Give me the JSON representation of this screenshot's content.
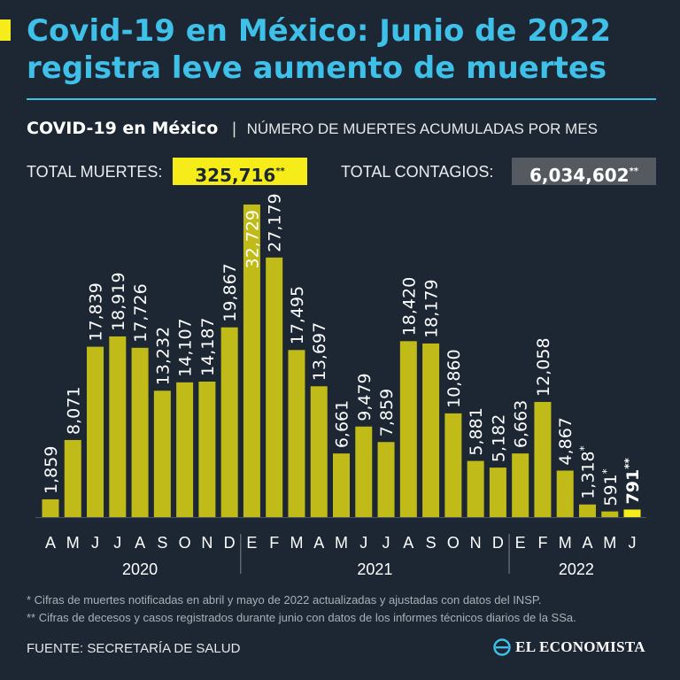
{
  "headline": {
    "line1": "Covid-19 en México: Junio de 2022",
    "line2": "registra leve aumento de muertes"
  },
  "subhead": {
    "strong": "COVID-19 en México",
    "separator": "|",
    "desc": "NÚMERO DE MUERTES ACUMULADAS POR MES"
  },
  "totals": {
    "deaths_label": "TOTAL MUERTES:",
    "deaths_value": "325,716",
    "deaths_mark": "**",
    "cases_label": "TOTAL CONTAGIOS:",
    "cases_value": "6,034,602",
    "cases_mark": "**"
  },
  "colors": {
    "background": "#1c2733",
    "headline": "#3fc0e8",
    "bar": "#c1bb19",
    "highlight_bar": "#f6ec19",
    "label": "#ffffff"
  },
  "chart_data": {
    "type": "bar",
    "title": "COVID-19 en México",
    "ylabel": "NÚMERO DE MUERTES ACUMULADAS POR MES",
    "categories": [
      "A",
      "M",
      "J",
      "J",
      "A",
      "S",
      "O",
      "N",
      "D",
      "E",
      "F",
      "M",
      "A",
      "M",
      "J",
      "J",
      "A",
      "S",
      "O",
      "N",
      "D",
      "E",
      "F",
      "M",
      "A",
      "M",
      "J"
    ],
    "values": [
      1859,
      8071,
      17839,
      18919,
      17726,
      13232,
      14107,
      14187,
      19867,
      32729,
      27179,
      17495,
      13697,
      6661,
      9479,
      7859,
      18420,
      18179,
      10860,
      5881,
      5182,
      6663,
      12058,
      4867,
      1318,
      591,
      791
    ],
    "data_labels": [
      "1,859",
      "8,071",
      "17,839",
      "18,919",
      "17,726",
      "13,232",
      "14,107",
      "14,187",
      "19,867",
      "32,729",
      "27,179",
      "17,495",
      "13,697",
      "6,661",
      "9,479",
      "7,859",
      "18,420",
      "18,179",
      "10,860",
      "5,881",
      "5,182",
      "6,663",
      "12,058",
      "4,867",
      "1,318*",
      "591*",
      "791**"
    ],
    "highlight_index": 26,
    "years": [
      {
        "label": "2020",
        "start": 0,
        "end": 8
      },
      {
        "label": "2021",
        "start": 9,
        "end": 20
      },
      {
        "label": "2022",
        "start": 21,
        "end": 26
      }
    ],
    "ylim": [
      0,
      32729
    ],
    "grid": false
  },
  "notes": {
    "note1": "* Cifras de muertes notificadas en abril y mayo de 2022 actualizadas y ajustadas con datos del INSP.",
    "note2": "** Cifras de decesos y casos registrados durante junio con datos de los informes técnicos diarios de la SSa."
  },
  "source": "FUENTE: SECRETARÍA DE SALUD",
  "brand": {
    "name": "EL ECONOMISTA",
    "icon": "el-economista-logo-icon"
  }
}
